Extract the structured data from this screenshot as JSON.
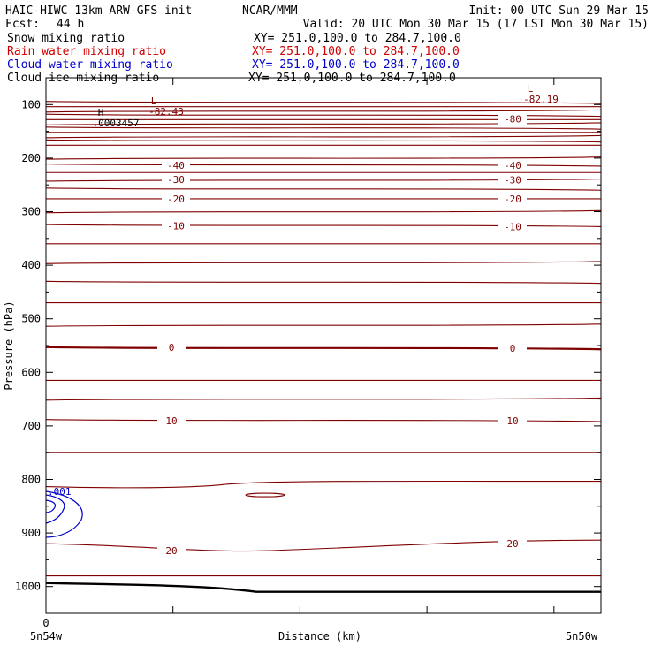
{
  "header": {
    "title": "HAIC-HIWC 13km ARW-GFS init",
    "center": "NCAR/MMM",
    "init": "Init: 00 UTC Sun 29 Mar 15",
    "fcst_label": "Fcst:",
    "fcst_value": "44 h",
    "valid": "Valid: 20 UTC Mon 30 Mar 15 (17 LST Mon 30 Mar 15)"
  },
  "legend": [
    {
      "name": "Snow mixing ratio",
      "xy": "XY= 251.0,100.0 to 284.7,100.0",
      "color": "#000000"
    },
    {
      "name": "Rain water mixing ratio",
      "xy": "XY= 251.0,100.0 to 284.7,100.0",
      "color": "#d00000"
    },
    {
      "name": "Cloud water mixing ratio",
      "xy": "XY= 251.0,100.0 to 284.7,100.0",
      "color": "#0000cc"
    },
    {
      "name": "Cloud ice mixing ratio",
      "xy": "XY= 251.0,100.0 to 284.7,100.0",
      "color": "#000000"
    }
  ],
  "chart_data": {
    "type": "line",
    "xlabel": "Distance (km)",
    "ylabel": "Pressure (hPa)",
    "ylim": [
      1050,
      50
    ],
    "yticks": [
      100,
      200,
      300,
      400,
      500,
      600,
      700,
      800,
      900,
      1000
    ],
    "x_origin_label": "0",
    "x_left_label": "5n54w",
    "x_right_label": "5n50w",
    "contour_color": "#800000",
    "cloud_water_color": "#0000cc",
    "temperature_labels": [
      {
        "text": "-80",
        "p": 127,
        "side": "right"
      },
      {
        "text": "-40",
        "p": 213,
        "side": "left"
      },
      {
        "text": "-40",
        "p": 213,
        "side": "right"
      },
      {
        "text": "-30",
        "p": 240,
        "side": "left"
      },
      {
        "text": "-30",
        "p": 241,
        "side": "right"
      },
      {
        "text": "-20",
        "p": 276,
        "side": "left"
      },
      {
        "text": "-20",
        "p": 276,
        "side": "right"
      },
      {
        "text": "-10",
        "p": 326,
        "side": "left"
      },
      {
        "text": "-10",
        "p": 328,
        "side": "right"
      },
      {
        "text": "0",
        "p": 553,
        "side": "left"
      },
      {
        "text": "0",
        "p": 555,
        "side": "right"
      },
      {
        "text": "10",
        "p": 690,
        "side": "left"
      },
      {
        "text": "10",
        "p": 690,
        "side": "right"
      },
      {
        "text": "20",
        "p": 933,
        "side": "left"
      },
      {
        "text": "20",
        "p": 920,
        "side": "right"
      }
    ],
    "extrema": [
      {
        "type": "L",
        "value": "-82.43"
      },
      {
        "type": "L",
        "value": "-82.19"
      },
      {
        "type": "H",
        "value": ".0003457"
      }
    ],
    "cloud_water_label": ".001"
  }
}
